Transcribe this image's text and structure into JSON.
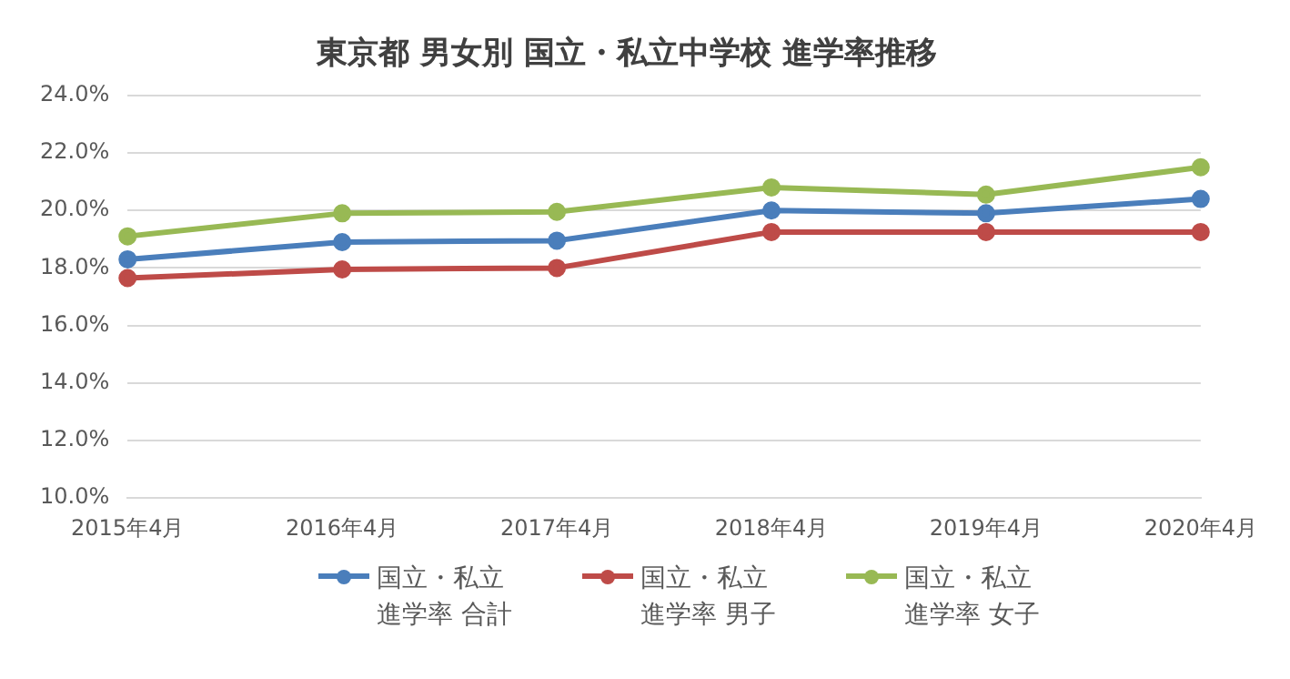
{
  "chart_data": {
    "type": "line",
    "title": "東京都 男女別 国立・私立中学校 進学率推移",
    "categories": [
      "2015年4月",
      "2016年4月",
      "2017年4月",
      "2018年4月",
      "2019年4月",
      "2020年4月"
    ],
    "series": [
      {
        "name": "国立・私立進学率 合計",
        "color": "#4a7ebb",
        "values": [
          18.3,
          18.9,
          18.95,
          20.0,
          19.9,
          20.4
        ]
      },
      {
        "name": "国立・私立進学率 男子",
        "color": "#be4b48",
        "values": [
          17.65,
          17.95,
          18.0,
          19.25,
          19.25,
          19.25
        ]
      },
      {
        "name": "国立・私立進学率 女子",
        "color": "#98b954",
        "values": [
          19.1,
          19.9,
          19.95,
          20.8,
          20.55,
          21.5
        ]
      }
    ],
    "ylim": [
      10,
      24
    ],
    "yticks": [
      {
        "value": 10,
        "label": "10.0%"
      },
      {
        "value": 12,
        "label": "12.0%"
      },
      {
        "value": 14,
        "label": "14.0%"
      },
      {
        "value": 16,
        "label": "16.0%"
      },
      {
        "value": 18,
        "label": "18.0%"
      },
      {
        "value": 20,
        "label": "20.0%"
      },
      {
        "value": 22,
        "label": "22.0%"
      },
      {
        "value": 24,
        "label": "24.0%"
      }
    ],
    "grid": "y",
    "legend": "bottom",
    "marker": "circle",
    "line_style": "solid"
  }
}
